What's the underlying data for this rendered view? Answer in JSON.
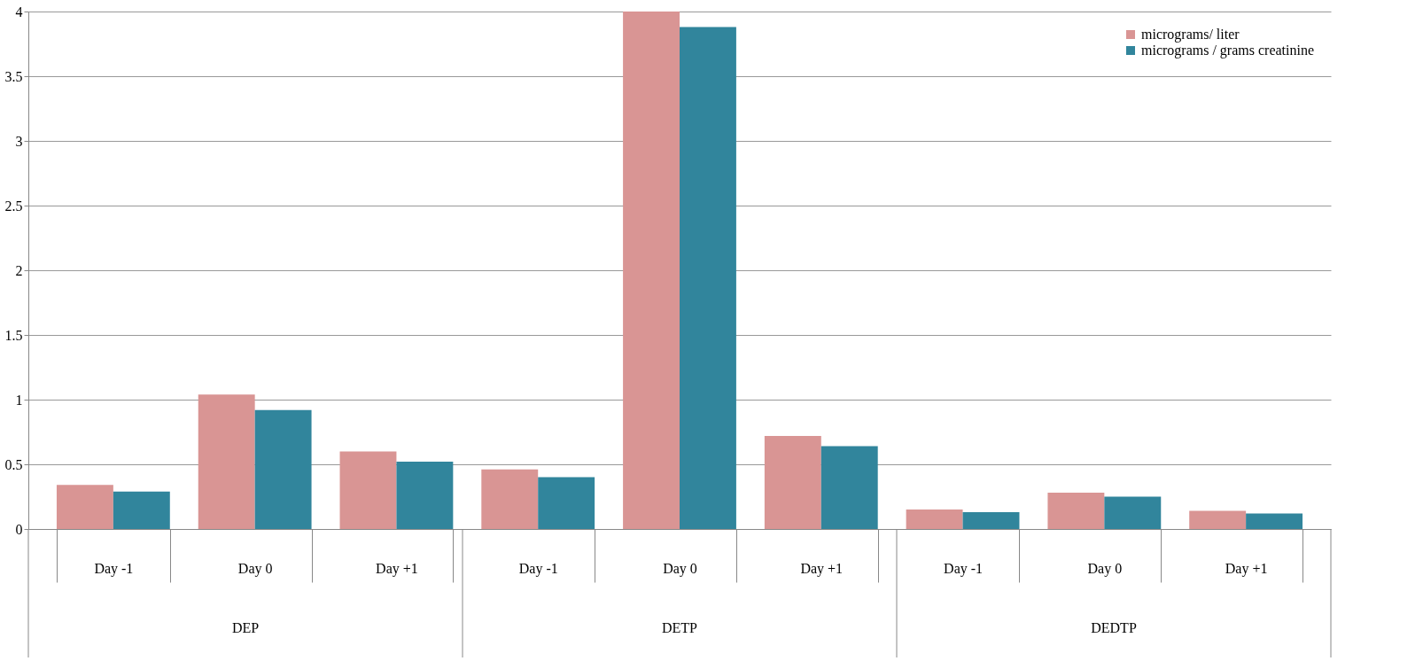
{
  "chart_data": {
    "type": "bar",
    "categories": [
      "Day -1",
      "Day 0",
      "Day +1",
      "Day -1",
      "Day 0",
      "Day +1",
      "Day -1",
      "Day 0",
      "Day +1"
    ],
    "series": [
      {
        "name": "micrograms/ liter",
        "color": "#d99594",
        "values": [
          0.34,
          1.04,
          0.6,
          0.46,
          4.0,
          0.72,
          0.15,
          0.28,
          0.14
        ]
      },
      {
        "name": "micrograms / grams creatinine",
        "color": "#31859c",
        "values": [
          0.29,
          0.92,
          0.52,
          0.4,
          3.88,
          0.64,
          0.13,
          0.25,
          0.12
        ]
      }
    ],
    "annotations": [
      "DEP",
      "DETP",
      "DEDTP"
    ],
    "ylim": [
      0,
      4
    ],
    "yticks": [
      0,
      0.5,
      1,
      1.5,
      2,
      2.5,
      3,
      3.5,
      4
    ],
    "grid": "y",
    "legend": "top right"
  }
}
